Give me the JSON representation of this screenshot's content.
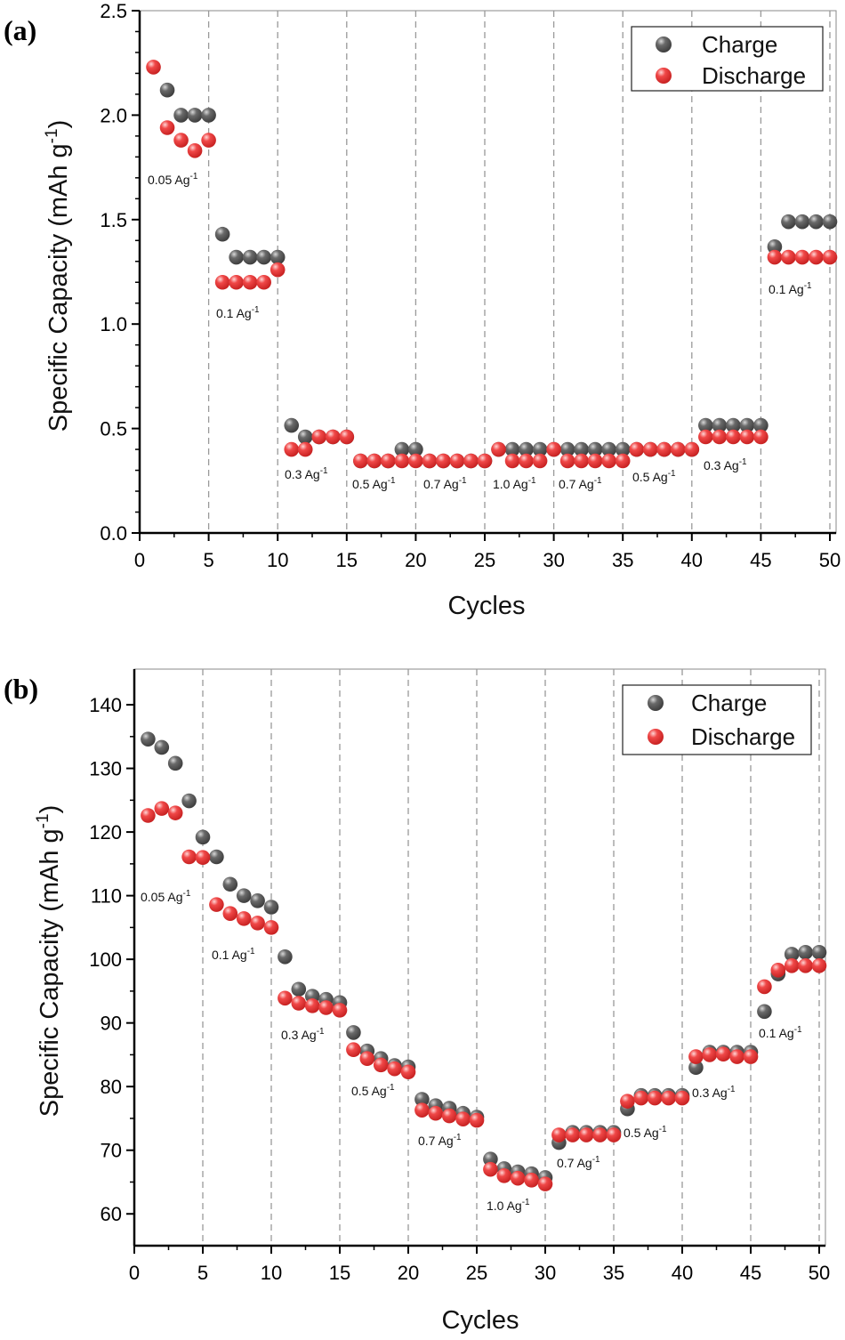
{
  "chart_data": [
    {
      "panel_label": "(a)",
      "type": "scatter",
      "xlabel": "Cycles",
      "ylabel": "Specific Capacity (mAh g",
      "ylabel_sup": "-1",
      "ylabel_end": ")",
      "xlim": [
        0,
        50.5
      ],
      "ylim": [
        0,
        2.5
      ],
      "xticks": [
        "0",
        "5",
        "10",
        "15",
        "20",
        "25",
        "30",
        "35",
        "40",
        "45",
        "50"
      ],
      "yticks": [
        "0.0",
        "0.5",
        "1.0",
        "1.5",
        "2.0",
        "2.5"
      ],
      "grid": "dashed vertical lines every 5 cycles",
      "legend_placement": "top-right",
      "x": [
        1,
        2,
        3,
        4,
        5,
        6,
        7,
        8,
        9,
        10,
        11,
        12,
        13,
        14,
        15,
        16,
        17,
        18,
        19,
        20,
        21,
        22,
        23,
        24,
        25,
        26,
        27,
        28,
        29,
        30,
        31,
        32,
        33,
        34,
        35,
        36,
        37,
        38,
        39,
        40,
        41,
        42,
        43,
        44,
        45,
        46,
        47,
        48,
        49,
        50
      ],
      "series": [
        {
          "name": "Charge",
          "color": "#555555",
          "values": [
            null,
            2.12,
            2.0,
            2.0,
            2.0,
            1.43,
            1.32,
            1.32,
            1.32,
            1.32,
            0.515,
            0.46,
            0.46,
            0.46,
            0.46,
            0.345,
            0.345,
            0.345,
            0.4,
            0.4,
            0.345,
            0.345,
            0.345,
            0.345,
            0.345,
            0.4,
            0.4,
            0.4,
            0.4,
            0.4,
            0.4,
            0.4,
            0.4,
            0.4,
            0.4,
            0.4,
            0.4,
            0.4,
            0.4,
            0.4,
            0.515,
            0.515,
            0.515,
            0.515,
            0.515,
            1.37,
            1.49,
            1.49,
            1.49,
            1.49
          ]
        },
        {
          "name": "Discharge",
          "color": "#e83535",
          "values": [
            2.23,
            1.94,
            1.88,
            1.83,
            1.88,
            1.2,
            1.2,
            1.2,
            1.2,
            1.26,
            0.4,
            0.4,
            0.46,
            0.46,
            0.46,
            0.345,
            0.345,
            0.345,
            0.345,
            0.345,
            0.345,
            0.345,
            0.345,
            0.345,
            0.345,
            0.4,
            0.345,
            0.345,
            0.345,
            0.4,
            0.345,
            0.345,
            0.345,
            0.345,
            0.345,
            0.4,
            0.4,
            0.4,
            0.4,
            0.4,
            0.46,
            0.46,
            0.46,
            0.46,
            0.46,
            1.32,
            1.32,
            1.32,
            1.32,
            1.32
          ]
        }
      ],
      "annotations": [
        "0.05 Ag",
        "0.1 Ag",
        "0.3 Ag",
        "0.5 Ag",
        "0.7 Ag",
        "1.0 Ag",
        "0.7 Ag",
        "0.5 Ag",
        "0.3 Ag",
        "0.1 Ag"
      ],
      "annotation_sup": "-1"
    },
    {
      "panel_label": "(b)",
      "type": "scatter",
      "xlabel": "Cycles",
      "ylabel": "Specific Capacity (mAh g",
      "ylabel_sup": "-1",
      "ylabel_end": ")",
      "xlim": [
        0,
        50.5
      ],
      "ylim": [
        55,
        145.6
      ],
      "xticks": [
        "0",
        "5",
        "10",
        "15",
        "20",
        "25",
        "30",
        "35",
        "40",
        "45",
        "50"
      ],
      "yticks": [
        "60",
        "70",
        "80",
        "90",
        "100",
        "110",
        "120",
        "130",
        "140"
      ],
      "grid": "dashed vertical lines every 5 cycles",
      "legend_placement": "top-right",
      "x": [
        1,
        2,
        3,
        4,
        5,
        6,
        7,
        8,
        9,
        10,
        11,
        12,
        13,
        14,
        15,
        16,
        17,
        18,
        19,
        20,
        21,
        22,
        23,
        24,
        25,
        26,
        27,
        28,
        29,
        30,
        31,
        32,
        33,
        34,
        35,
        36,
        37,
        38,
        39,
        40,
        41,
        42,
        43,
        44,
        45,
        46,
        47,
        48,
        49,
        50
      ],
      "series": [
        {
          "name": "Charge",
          "color": "#555555",
          "values": [
            134.6,
            133.3,
            130.8,
            124.9,
            119.2,
            116.1,
            111.8,
            110.0,
            109.2,
            108.2,
            100.4,
            95.3,
            94.2,
            93.7,
            93.2,
            88.5,
            85.6,
            84.4,
            83.3,
            83.1,
            78.0,
            77.0,
            76.6,
            75.8,
            75.2,
            68.6,
            67.1,
            66.6,
            66.3,
            65.7,
            71.2,
            72.8,
            72.8,
            72.8,
            72.8,
            76.5,
            78.6,
            78.6,
            78.6,
            78.6,
            83.0,
            85.4,
            85.4,
            85.4,
            85.4,
            91.8,
            97.7,
            100.8,
            101.1,
            101.1
          ]
        },
        {
          "name": "Discharge",
          "color": "#e83535",
          "values": [
            122.6,
            123.7,
            123.0,
            116.1,
            116.0,
            108.6,
            107.2,
            106.4,
            105.7,
            105.0,
            93.9,
            93.1,
            92.7,
            92.4,
            92.0,
            85.8,
            84.4,
            83.4,
            82.8,
            82.3,
            76.3,
            75.8,
            75.4,
            74.9,
            74.7,
            67.0,
            66.0,
            65.6,
            65.3,
            64.7,
            72.4,
            72.4,
            72.4,
            72.4,
            72.4,
            77.7,
            78.2,
            78.2,
            78.2,
            78.2,
            84.7,
            85.0,
            85.1,
            84.7,
            84.7,
            95.7,
            98.3,
            99.0,
            99.0,
            99.0
          ]
        }
      ],
      "annotations": [
        "0.05 Ag",
        "0.1 Ag",
        "0.3 Ag",
        "0.5 Ag",
        "0.7 Ag",
        "1.0 Ag",
        "0.7 Ag",
        "0.5 Ag",
        "0.3 Ag",
        "0.1 Ag"
      ],
      "annotation_sup": "-1"
    }
  ]
}
